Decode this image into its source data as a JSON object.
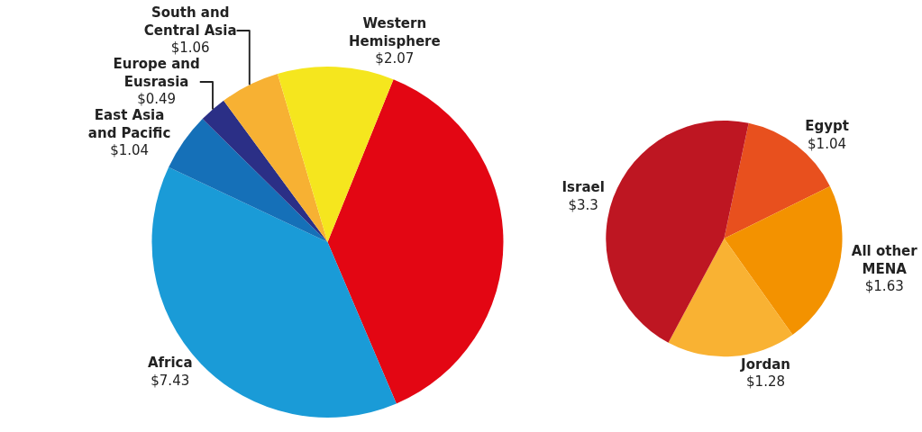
{
  "chart_data": [
    {
      "type": "pie",
      "categories": [
        null,
        "Africa",
        "East Asia and Pacific",
        "Europe and Eusrasia",
        "South and Central Asia",
        "Western Hemisphere"
      ],
      "values": [
        7.25,
        7.43,
        1.04,
        0.49,
        1.06,
        2.07
      ],
      "colors": [
        "#e30613",
        "#1a9bd7",
        "#1570b8",
        "#2b2f86",
        "#f7b133",
        "#f5e61e"
      ],
      "value_labels": [
        null,
        "$7.43",
        "$1.04",
        "$0.49",
        "$1.06",
        "$2.07"
      ]
    },
    {
      "type": "pie",
      "categories": [
        "Egypt",
        "All other MENA",
        "Jordan",
        "Israel"
      ],
      "values": [
        1.04,
        1.63,
        1.28,
        3.3
      ],
      "colors": [
        "#e8501e",
        "#f39200",
        "#f9b233",
        "#be1622"
      ],
      "value_labels": [
        "$1.04",
        "$1.63",
        "$1.28",
        "$3.3"
      ]
    }
  ]
}
